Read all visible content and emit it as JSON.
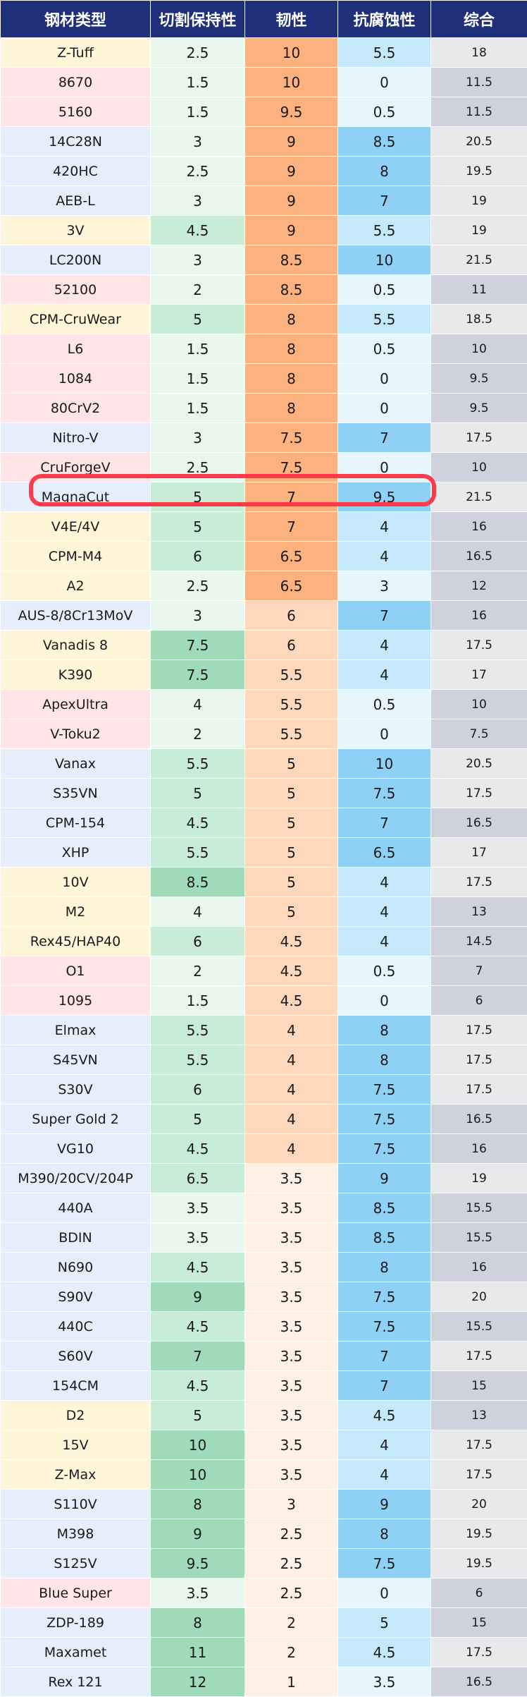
{
  "table": {
    "headers": [
      "钢材类型",
      "切割保持性",
      "韧性",
      "抗腐蚀性",
      "综合"
    ],
    "rows": [
      {
        "name": "Z-Tuff",
        "edge": "2.5",
        "tough": "10",
        "corr": "5.5",
        "total": "18"
      },
      {
        "name": "8670",
        "edge": "1.5",
        "tough": "10",
        "corr": "0",
        "total": "11.5"
      },
      {
        "name": "5160",
        "edge": "1.5",
        "tough": "9.5",
        "corr": "0.5",
        "total": "11.5"
      },
      {
        "name": "14C28N",
        "edge": "3",
        "tough": "9",
        "corr": "8.5",
        "total": "20.5"
      },
      {
        "name": "420HC",
        "edge": "2.5",
        "tough": "9",
        "corr": "8",
        "total": "19.5"
      },
      {
        "name": "AEB-L",
        "edge": "3",
        "tough": "9",
        "corr": "7",
        "total": "19"
      },
      {
        "name": "3V",
        "edge": "4.5",
        "tough": "9",
        "corr": "5.5",
        "total": "19"
      },
      {
        "name": "LC200N",
        "edge": "3",
        "tough": "8.5",
        "corr": "10",
        "total": "21.5"
      },
      {
        "name": "52100",
        "edge": "2",
        "tough": "8.5",
        "corr": "0.5",
        "total": "11"
      },
      {
        "name": "CPM-CruWear",
        "edge": "5",
        "tough": "8",
        "corr": "5.5",
        "total": "18.5"
      },
      {
        "name": "L6",
        "edge": "1.5",
        "tough": "8",
        "corr": "0.5",
        "total": "10"
      },
      {
        "name": "1084",
        "edge": "1.5",
        "tough": "8",
        "corr": "0",
        "total": "9.5"
      },
      {
        "name": "80CrV2",
        "edge": "1.5",
        "tough": "8",
        "corr": "0",
        "total": "9.5"
      },
      {
        "name": "Nitro-V",
        "edge": "3",
        "tough": "7.5",
        "corr": "7",
        "total": "17.5"
      },
      {
        "name": "CruForgeV",
        "edge": "2.5",
        "tough": "7.5",
        "corr": "0",
        "total": "10"
      },
      {
        "name": "MagnaCut",
        "edge": "5",
        "tough": "7",
        "corr": "9.5",
        "total": "21.5"
      },
      {
        "name": "V4E/4V",
        "edge": "5",
        "tough": "7",
        "corr": "4",
        "total": "16"
      },
      {
        "name": "CPM-M4",
        "edge": "6",
        "tough": "6.5",
        "corr": "4",
        "total": "16.5"
      },
      {
        "name": "A2",
        "edge": "2.5",
        "tough": "6.5",
        "corr": "3",
        "total": "12"
      },
      {
        "name": "AUS-8/8Cr13MoV",
        "edge": "3",
        "tough": "6",
        "corr": "7",
        "total": "16"
      },
      {
        "name": "Vanadis 8",
        "edge": "7.5",
        "tough": "6",
        "corr": "4",
        "total": "17.5"
      },
      {
        "name": "K390",
        "edge": "7.5",
        "tough": "5.5",
        "corr": "4",
        "total": "17"
      },
      {
        "name": "ApexUltra",
        "edge": "4",
        "tough": "5.5",
        "corr": "0.5",
        "total": "10"
      },
      {
        "name": "V-Toku2",
        "edge": "2",
        "tough": "5.5",
        "corr": "0",
        "total": "7.5"
      },
      {
        "name": "Vanax",
        "edge": "5.5",
        "tough": "5",
        "corr": "10",
        "total": "20.5"
      },
      {
        "name": "S35VN",
        "edge": "5",
        "tough": "5",
        "corr": "7.5",
        "total": "17.5"
      },
      {
        "name": "CPM-154",
        "edge": "4.5",
        "tough": "5",
        "corr": "7",
        "total": "16.5"
      },
      {
        "name": "XHP",
        "edge": "5.5",
        "tough": "5",
        "corr": "6.5",
        "total": "17"
      },
      {
        "name": "10V",
        "edge": "8.5",
        "tough": "5",
        "corr": "4",
        "total": "17.5"
      },
      {
        "name": "M2",
        "edge": "4",
        "tough": "5",
        "corr": "4",
        "total": "13"
      },
      {
        "name": "Rex45/HAP40",
        "edge": "6",
        "tough": "4.5",
        "corr": "4",
        "total": "14.5"
      },
      {
        "name": "O1",
        "edge": "2",
        "tough": "4.5",
        "corr": "0.5",
        "total": "7"
      },
      {
        "name": "1095",
        "edge": "1.5",
        "tough": "4.5",
        "corr": "0",
        "total": "6"
      },
      {
        "name": "Elmax",
        "edge": "5.5",
        "tough": "4",
        "corr": "8",
        "total": "17.5"
      },
      {
        "name": "S45VN",
        "edge": "5.5",
        "tough": "4",
        "corr": "8",
        "total": "17.5"
      },
      {
        "name": "S30V",
        "edge": "6",
        "tough": "4",
        "corr": "7.5",
        "total": "17.5"
      },
      {
        "name": "Super Gold 2",
        "edge": "5",
        "tough": "4",
        "corr": "7.5",
        "total": "16.5"
      },
      {
        "name": "VG10",
        "edge": "4.5",
        "tough": "4",
        "corr": "7.5",
        "total": "16"
      },
      {
        "name": "M390/20CV/204P",
        "edge": "6.5",
        "tough": "3.5",
        "corr": "9",
        "total": "19"
      },
      {
        "name": "440A",
        "edge": "3.5",
        "tough": "3.5",
        "corr": "8.5",
        "total": "15.5"
      },
      {
        "name": "BDIN",
        "edge": "3.5",
        "tough": "3.5",
        "corr": "8.5",
        "total": "15.5"
      },
      {
        "name": "N690",
        "edge": "4.5",
        "tough": "3.5",
        "corr": "8",
        "total": "16"
      },
      {
        "name": "S90V",
        "edge": "9",
        "tough": "3.5",
        "corr": "7.5",
        "total": "20"
      },
      {
        "name": "440C",
        "edge": "4.5",
        "tough": "3.5",
        "corr": "7.5",
        "total": "15.5"
      },
      {
        "name": "S60V",
        "edge": "7",
        "tough": "3.5",
        "corr": "7",
        "total": "17.5"
      },
      {
        "name": "154CM",
        "edge": "4.5",
        "tough": "3.5",
        "corr": "7",
        "total": "15"
      },
      {
        "name": "D2",
        "edge": "5",
        "tough": "3.5",
        "corr": "4.5",
        "total": "13"
      },
      {
        "name": "15V",
        "edge": "10",
        "tough": "3.5",
        "corr": "4",
        "total": "17.5"
      },
      {
        "name": "Z-Max",
        "edge": "10",
        "tough": "3.5",
        "corr": "4",
        "total": "17.5"
      },
      {
        "name": "S110V",
        "edge": "8",
        "tough": "3",
        "corr": "9",
        "total": "20"
      },
      {
        "name": "M398",
        "edge": "9",
        "tough": "2.5",
        "corr": "8",
        "total": "19.5"
      },
      {
        "name": "S125V",
        "edge": "9.5",
        "tough": "2.5",
        "corr": "7.5",
        "total": "19.5"
      },
      {
        "name": "Blue Super",
        "edge": "3.5",
        "tough": "2.5",
        "corr": "0",
        "total": "6"
      },
      {
        "name": "ZDP-189",
        "edge": "8",
        "tough": "2",
        "corr": "5",
        "total": "15"
      },
      {
        "name": "Maxamet",
        "edge": "11",
        "tough": "2",
        "corr": "4.5",
        "total": "17.5"
      },
      {
        "name": "Rex 121",
        "edge": "12",
        "tough": "1",
        "corr": "3.5",
        "total": "16.5"
      }
    ]
  },
  "highlighted_row": "MagnaCut",
  "colors": {
    "header_bg": "#1f2f7a",
    "highlight_outline": "#ff3b4a",
    "name_yellow": "#fff6d9",
    "name_pink": "#ffe4e8",
    "name_blue": "#e6edfb"
  }
}
